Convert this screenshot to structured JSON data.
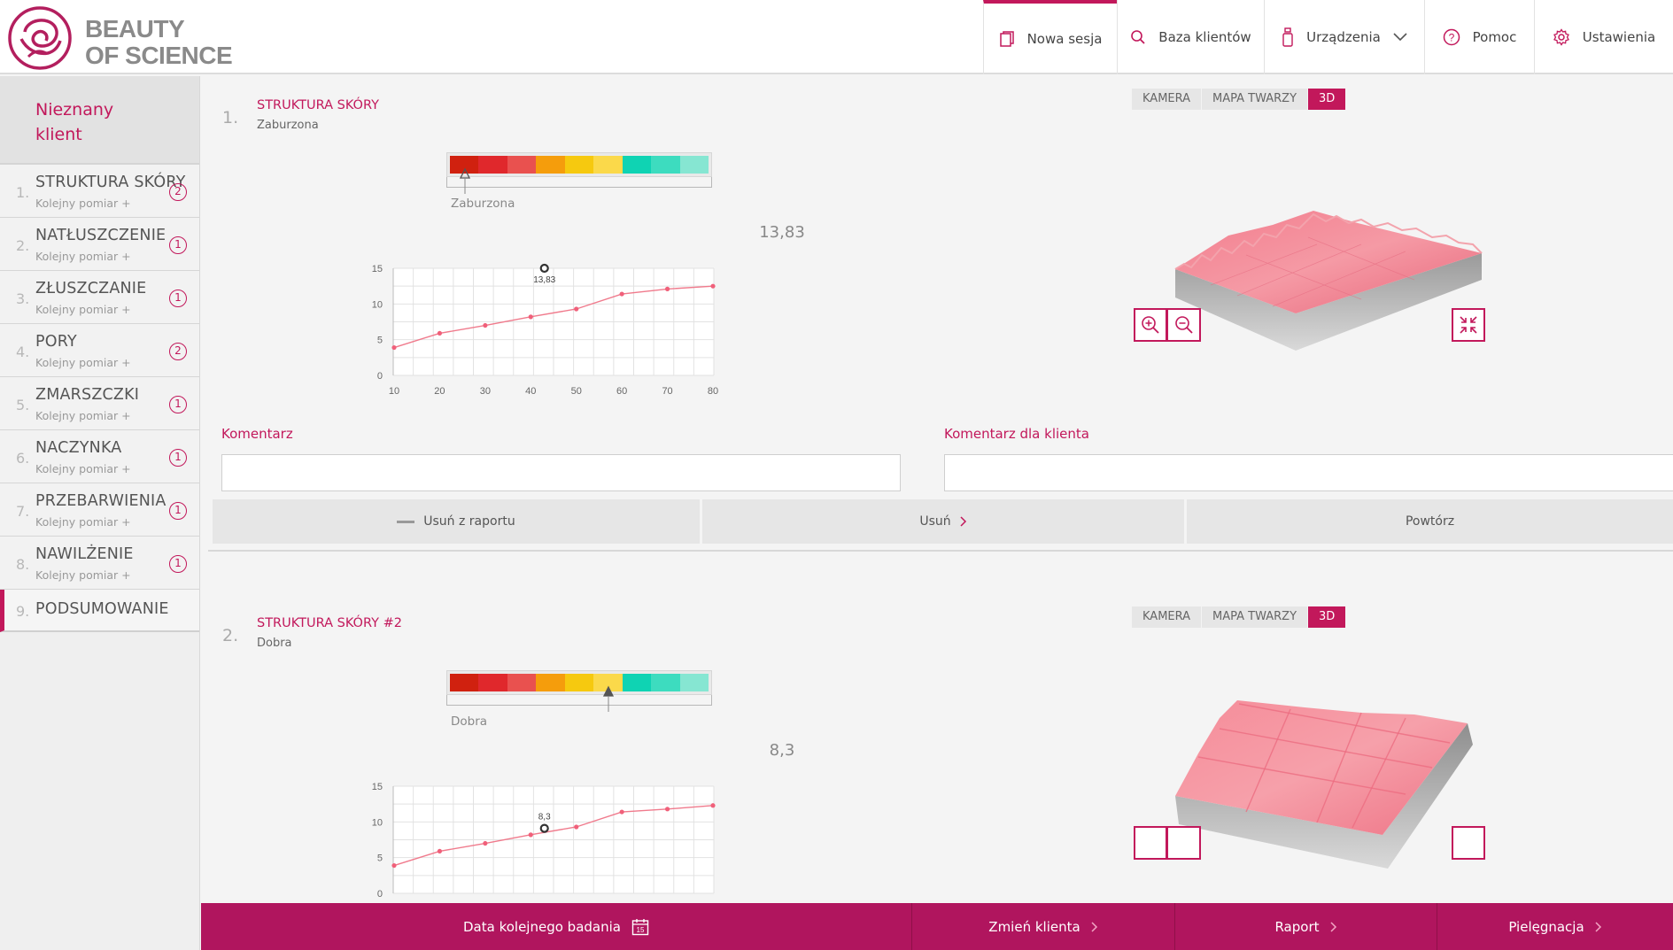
{
  "app": {
    "logo_line1": "BEAUTY",
    "logo_line2": "OF SCIENCE",
    "brand_color": "#c2185b",
    "footer_color": "#b0155e"
  },
  "nav": {
    "items": [
      {
        "label": "Nowa sesja",
        "icon": "document-icon",
        "active": true
      },
      {
        "label": "Baza klientów",
        "icon": "search-icon",
        "active": false
      },
      {
        "label": "Urządzenia",
        "icon": "bottle-icon",
        "active": false
      },
      {
        "label": "Pomoc",
        "icon": "help-icon",
        "active": false
      },
      {
        "label": "Ustawienia",
        "icon": "gear-icon",
        "active": false
      }
    ]
  },
  "sidebar": {
    "client_line1": "Nieznany",
    "client_line2": "klient",
    "items": [
      {
        "num": "1.",
        "title": "STRUKTURA SKÓRY",
        "sub": "Kolejny pomiar +",
        "badge": "2"
      },
      {
        "num": "2.",
        "title": "NATŁUSZCZENIE",
        "sub": "Kolejny pomiar +",
        "badge": "1"
      },
      {
        "num": "3.",
        "title": "ZŁUSZCZANIE",
        "sub": "Kolejny pomiar +",
        "badge": "1"
      },
      {
        "num": "4.",
        "title": "PORY",
        "sub": "Kolejny pomiar +",
        "badge": "2"
      },
      {
        "num": "5.",
        "title": "ZMARSZCZKI",
        "sub": "Kolejny pomiar +",
        "badge": "1"
      },
      {
        "num": "6.",
        "title": "NACZYNKA",
        "sub": "Kolejny pomiar +",
        "badge": "1"
      },
      {
        "num": "7.",
        "title": "PRZEBARWIENIA",
        "sub": "Kolejny pomiar +",
        "badge": "1"
      },
      {
        "num": "8.",
        "title": "NAWILŻENIE",
        "sub": "Kolejny pomiar +",
        "badge": "1"
      }
    ],
    "summary": {
      "num": "9.",
      "title": "PODSUMOWANIE"
    }
  },
  "scale_colors": [
    "#d0210f",
    "#e0282c",
    "#e9514f",
    "#f59d0c",
    "#f6c90f",
    "#fbd94a",
    "#0fd3b3",
    "#3ddcbf",
    "#86e6d2"
  ],
  "view_tabs": [
    "KAMERA",
    "MAPA TWARZY",
    "3D"
  ],
  "comments": {
    "comment_label": "Komentarz",
    "client_comment_label": "Komentarz dla klienta"
  },
  "actions": {
    "remove_from_report": "Usuń z raportu",
    "delete": "Usuń",
    "repeat": "Powtórz"
  },
  "results": [
    {
      "num": "1.",
      "title": "STRUKTURA SKÓRY",
      "status": "Zaburzona",
      "scale_label": "Zaburzona",
      "scale_position": 0.07,
      "value": "13,83",
      "active_view": "3D",
      "chart_data": {
        "type": "line",
        "x": [
          10,
          20,
          30,
          40,
          50,
          60,
          70,
          80
        ],
        "y": [
          3.9,
          5.9,
          7.0,
          8.2,
          9.3,
          11.4,
          12.1,
          12.5
        ],
        "xticks": [
          "10",
          "20",
          "30",
          "40",
          "50",
          "60",
          "70",
          "80"
        ],
        "yticks": [
          "0",
          "5",
          "10",
          "15"
        ],
        "xlim": [
          10,
          80
        ],
        "ylim": [
          0,
          15
        ],
        "highlight": {
          "x": 43,
          "y": 15,
          "label": "13,83",
          "label_pos": "below"
        },
        "grid": true
      }
    },
    {
      "num": "2.",
      "title": "STRUKTURA SKÓRY #2",
      "status": "Dobra",
      "scale_label": "Dobra",
      "scale_position": 0.61,
      "value": "8,3",
      "active_view": "3D",
      "chart_data": {
        "type": "line",
        "x": [
          10,
          20,
          30,
          40,
          50,
          60,
          70,
          80
        ],
        "y": [
          3.9,
          5.9,
          7.0,
          8.2,
          9.3,
          11.4,
          11.8,
          12.3
        ],
        "xticks": [
          "10",
          "20",
          "30",
          "40",
          "50",
          "60",
          "70",
          "80"
        ],
        "yticks": [
          "0",
          "5",
          "10",
          "15"
        ],
        "xlim": [
          10,
          80
        ],
        "ylim": [
          0,
          15
        ],
        "highlight": {
          "x": 43,
          "y": 9.1,
          "label": "8,3",
          "label_pos": "above"
        },
        "grid": true
      }
    }
  ],
  "footer": {
    "next_exam": "Data kolejnego badania",
    "change_client": "Zmień klienta",
    "report": "Raport",
    "care": "Pielęgnacja",
    "calendar_day": "15"
  }
}
